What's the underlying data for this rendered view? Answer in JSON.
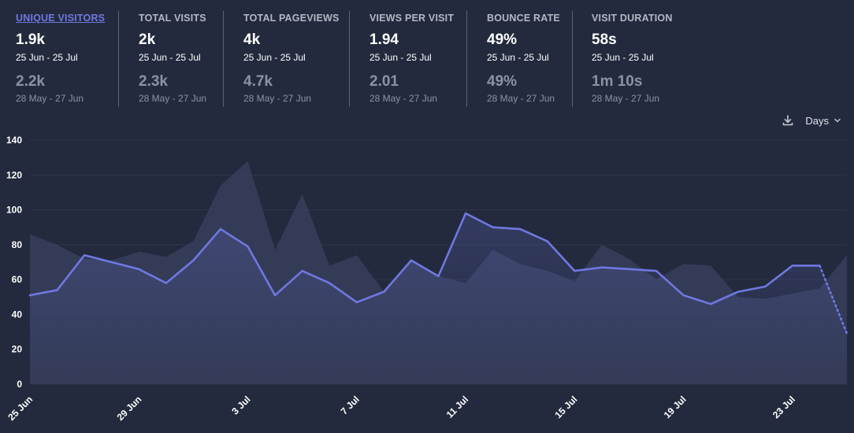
{
  "metrics": [
    {
      "label": "UNIQUE VISITORS",
      "value": "1.9k",
      "range": "25 Jun - 25 Jul",
      "prev_value": "2.2k",
      "prev_range": "28 May - 27 Jun"
    },
    {
      "label": "TOTAL VISITS",
      "value": "2k",
      "range": "25 Jun - 25 Jul",
      "prev_value": "2.3k",
      "prev_range": "28 May - 27 Jun"
    },
    {
      "label": "TOTAL PAGEVIEWS",
      "value": "4k",
      "range": "25 Jun - 25 Jul",
      "prev_value": "4.7k",
      "prev_range": "28 May - 27 Jun"
    },
    {
      "label": "VIEWS PER VISIT",
      "value": "1.94",
      "range": "25 Jun - 25 Jul",
      "prev_value": "2.01",
      "prev_range": "28 May - 27 Jun"
    },
    {
      "label": "BOUNCE RATE",
      "value": "49%",
      "range": "25 Jun - 25 Jul",
      "prev_value": "49%",
      "prev_range": "28 May - 27 Jun"
    },
    {
      "label": "VISIT DURATION",
      "value": "58s",
      "range": "25 Jun - 25 Jul",
      "prev_value": "1m 10s",
      "prev_range": "28 May - 27 Jun"
    }
  ],
  "toolbar": {
    "download_icon": "download-icon",
    "interval_label": "Days",
    "interval_icon": "chevron-down-icon"
  },
  "colors": {
    "background": "#232a3d",
    "accent": "#6f78e0",
    "previous_fill": "#3a4260",
    "grid": "#2f3649",
    "muted_text": "#8b93a3"
  },
  "chart_data": {
    "type": "line",
    "y_ticks": [
      0,
      20,
      40,
      60,
      80,
      100,
      120,
      140
    ],
    "ylim": [
      0,
      140
    ],
    "x_tick_labels": [
      "25 Jun",
      "29 Jun",
      "3 Jul",
      "7 Jul",
      "11 Jul",
      "15 Jul",
      "19 Jul",
      "23 Jul"
    ],
    "x_tick_every": 4,
    "grid": true,
    "series": [
      {
        "style": "line",
        "values": [
          51,
          54,
          74,
          70,
          66,
          58,
          71,
          89,
          79,
          51,
          65,
          58,
          47,
          53,
          71,
          62,
          98,
          90,
          89,
          82,
          65,
          67,
          66,
          65,
          51,
          46,
          53,
          56,
          68,
          68,
          29
        ],
        "dotted_last_segment": true
      },
      {
        "style": "area",
        "values": [
          86,
          80,
          72,
          71,
          76,
          73,
          82,
          114,
          128,
          77,
          109,
          68,
          74,
          53,
          72,
          62,
          58,
          77,
          69,
          65,
          59,
          80,
          72,
          60,
          69,
          68,
          50,
          49,
          52,
          55,
          74
        ]
      }
    ]
  }
}
